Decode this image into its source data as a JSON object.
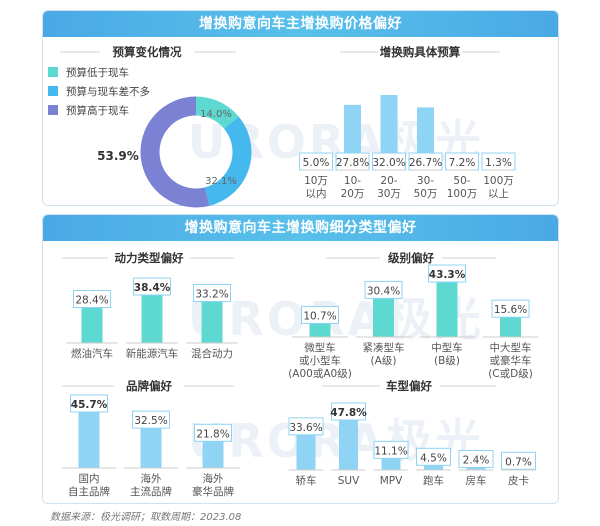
{
  "panels": {
    "top_title": "增换购意向车主增换购价格偏好",
    "bottom_title": "增换购意向车主增换购细分类型偏好"
  },
  "watermark": "URORA极光",
  "source": "数据来源：极光调研；取数周期：2023.08",
  "colors": {
    "teal": "#5dd9d1",
    "blue": "#45b8ee",
    "purple": "#7b82d4",
    "bar": "#5dd9d1",
    "bar_blue": "#8fd3f5",
    "label_border": "#8fd3f5"
  },
  "chart_data": [
    {
      "id": "budget-change",
      "type": "pie",
      "title": "预算变化情况",
      "labels": [
        "预算低于现车",
        "预算与现车差不多",
        "预算高于现车"
      ],
      "values": [
        14.0,
        32.1,
        53.9
      ],
      "value_labels": [
        "14.0%",
        "32.1%",
        "53.9%"
      ],
      "colors": [
        "#5dd9d1",
        "#45b8ee",
        "#7b82d4"
      ],
      "legend_position": "top-left"
    },
    {
      "id": "budget-range",
      "type": "bar",
      "title": "增换购具体预算",
      "categories": [
        [
          "10万",
          "以内"
        ],
        [
          "10-",
          "20万"
        ],
        [
          "20-",
          "30万"
        ],
        [
          "30-",
          "50万"
        ],
        [
          "50-",
          "100万"
        ],
        [
          "100万",
          "以上"
        ]
      ],
      "values": [
        5.0,
        27.8,
        32.0,
        26.7,
        7.2,
        1.3
      ],
      "value_labels": [
        "5.0%",
        "27.8%",
        "32.0%",
        "26.7%",
        "7.2%",
        "1.3%"
      ],
      "bold_index": -1
    },
    {
      "id": "power-type",
      "type": "bar",
      "title": "动力类型偏好",
      "categories": [
        [
          "燃油汽车"
        ],
        [
          "新能源汽车"
        ],
        [
          "混合动力"
        ]
      ],
      "values": [
        28.4,
        38.4,
        33.2
      ],
      "value_labels": [
        "28.4%",
        "38.4%",
        "33.2%"
      ],
      "bold_index": 1
    },
    {
      "id": "size-class",
      "type": "bar",
      "title": "级别偏好",
      "categories": [
        [
          "微型车",
          "或小型车",
          "(A00或A0级)"
        ],
        [
          "紧凑型车",
          "(A级)"
        ],
        [
          "中型车",
          "(B级)"
        ],
        [
          "中大型车",
          "或豪华车",
          "(C或D级)"
        ]
      ],
      "values": [
        10.7,
        30.4,
        43.3,
        15.6
      ],
      "value_labels": [
        "10.7%",
        "30.4%",
        "43.3%",
        "15.6%"
      ],
      "bold_index": 2
    },
    {
      "id": "brand",
      "type": "bar",
      "title": "品牌偏好",
      "categories": [
        [
          "国内",
          "自主品牌"
        ],
        [
          "海外",
          "主流品牌"
        ],
        [
          "海外",
          "豪华品牌"
        ]
      ],
      "values": [
        45.7,
        32.5,
        21.8
      ],
      "value_labels": [
        "45.7%",
        "32.5%",
        "21.8%"
      ],
      "bold_index": 0
    },
    {
      "id": "body-type",
      "type": "bar",
      "title": "车型偏好",
      "categories": [
        [
          "轿车"
        ],
        [
          "SUV"
        ],
        [
          "MPV"
        ],
        [
          "跑车"
        ],
        [
          "房车"
        ],
        [
          "皮卡"
        ]
      ],
      "values": [
        33.6,
        47.8,
        11.1,
        4.5,
        2.4,
        0.7
      ],
      "value_labels": [
        "33.6%",
        "47.8%",
        "11.1%",
        "4.5%",
        "2.4%",
        "0.7%"
      ],
      "bold_index": 1
    }
  ]
}
